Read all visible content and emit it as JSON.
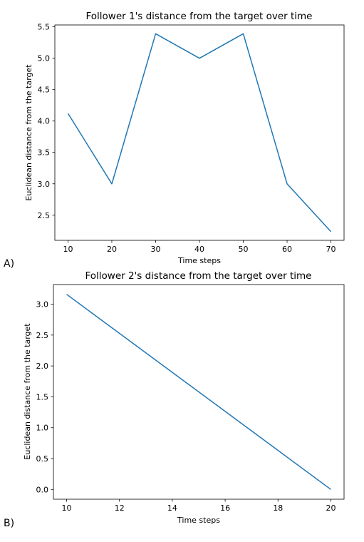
{
  "chart_data": [
    {
      "type": "line",
      "panel_label": "A)",
      "title": "Follower 1's distance from the target over time",
      "xlabel": "Time steps",
      "ylabel": "Euclidean distance from the target",
      "x": [
        10,
        20,
        30,
        40,
        50,
        60,
        70
      ],
      "series": [
        {
          "values": [
            4.12,
            3.0,
            5.39,
            5.0,
            5.39,
            3.0,
            2.24
          ]
        }
      ],
      "xlim": [
        7,
        73
      ],
      "ylim": [
        2.1,
        5.53
      ],
      "xticks": [
        10,
        20,
        30,
        40,
        50,
        60,
        70
      ],
      "yticks": [
        2.5,
        3.0,
        3.5,
        4.0,
        4.5,
        5.0,
        5.5
      ],
      "xtick_labels": [
        "10",
        "20",
        "30",
        "40",
        "50",
        "60",
        "70"
      ],
      "ytick_labels": [
        "2.5",
        "3.0",
        "3.5",
        "4.0",
        "4.5",
        "5.0",
        "5.5"
      ],
      "grid": false,
      "color": "#1f77b4"
    },
    {
      "type": "line",
      "panel_label": "B)",
      "title": "Follower 2's distance from the target over time",
      "xlabel": "Time steps",
      "ylabel": "Euclidean distance from the target",
      "x": [
        10,
        20
      ],
      "series": [
        {
          "values": [
            3.16,
            0.0
          ]
        }
      ],
      "xlim": [
        9.5,
        20.5
      ],
      "ylim": [
        -0.158,
        3.318
      ],
      "xticks": [
        10,
        12,
        14,
        16,
        18,
        20
      ],
      "yticks": [
        0.0,
        0.5,
        1.0,
        1.5,
        2.0,
        2.5,
        3.0
      ],
      "xtick_labels": [
        "10",
        "12",
        "14",
        "16",
        "18",
        "20"
      ],
      "ytick_labels": [
        "0.0",
        "0.5",
        "1.0",
        "1.5",
        "2.0",
        "2.5",
        "3.0"
      ],
      "grid": false,
      "color": "#1f77b4"
    }
  ]
}
